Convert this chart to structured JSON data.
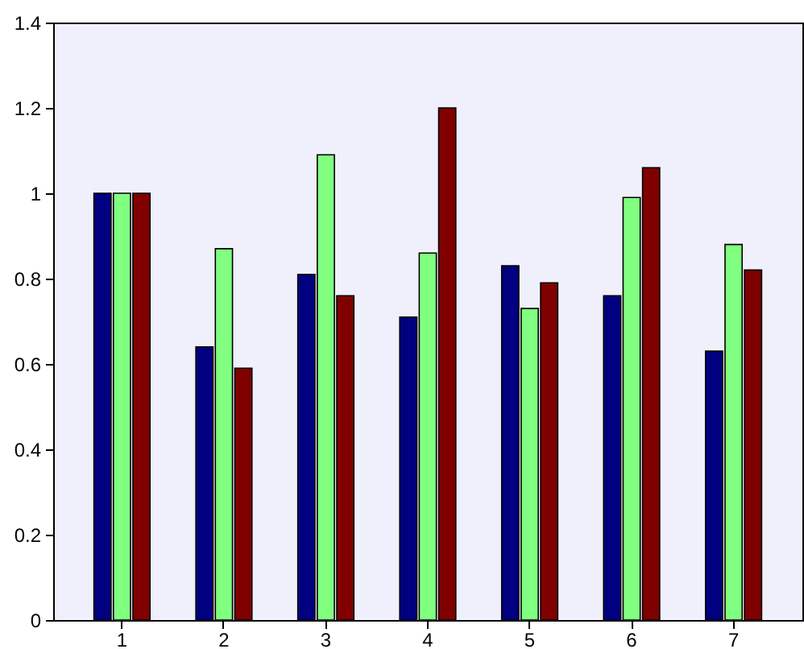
{
  "chart_data": {
    "type": "bar",
    "categories": [
      "1",
      "2",
      "3",
      "4",
      "5",
      "6",
      "7"
    ],
    "series": [
      {
        "color": "#000080",
        "values": [
          1,
          0.64,
          0.81,
          0.71,
          0.83,
          0.76,
          0.63
        ]
      },
      {
        "color": "#80ff80",
        "values": [
          1,
          0.87,
          1.09,
          0.86,
          0.73,
          0.99,
          0.88
        ]
      },
      {
        "color": "#800000",
        "values": [
          1,
          0.59,
          0.76,
          1.2,
          0.79,
          1.06,
          0.82
        ]
      }
    ],
    "ylim": [
      0,
      1.4
    ],
    "yticks": [
      0,
      0.2,
      0.4,
      0.6,
      0.8,
      1,
      1.2,
      1.4
    ],
    "grid": false
  }
}
